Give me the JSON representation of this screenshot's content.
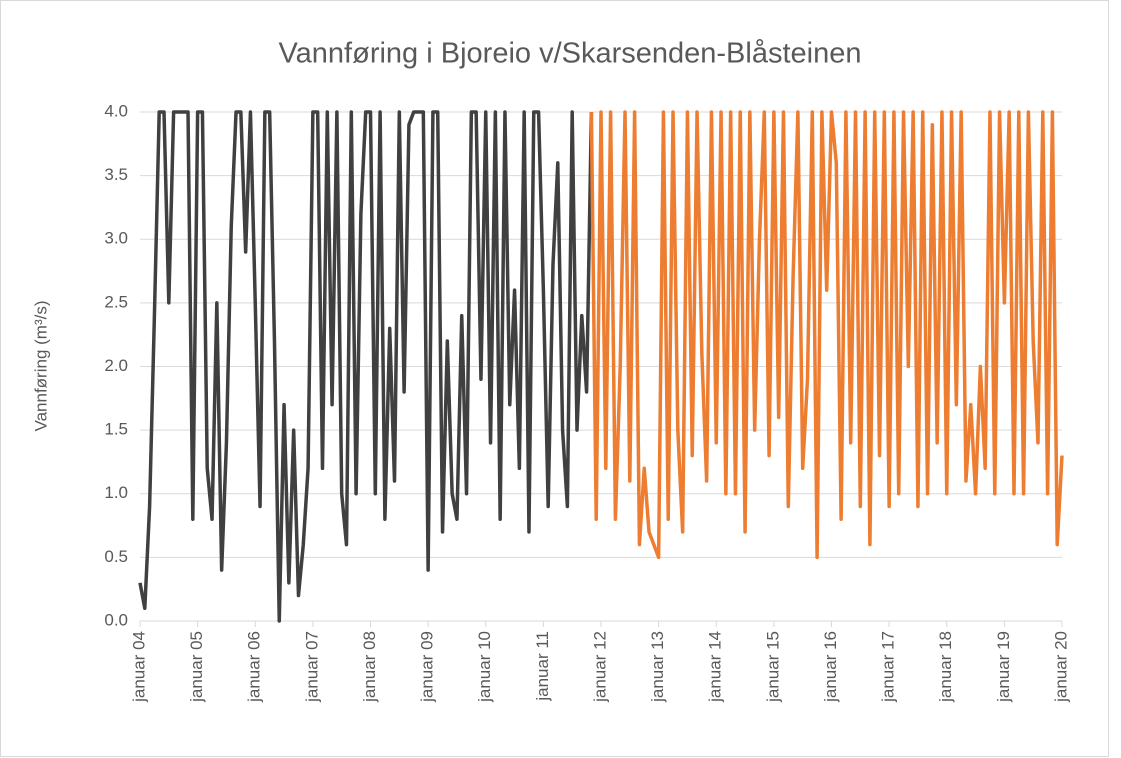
{
  "chart_data": {
    "type": "line",
    "title": "Vannføring i Bjoreio v/Skarsenden-Blåsteinen",
    "y_label": "Vannføring (m³/s)",
    "ylim": [
      0,
      4
    ],
    "yticks": [
      {
        "value": 0,
        "label": "0.0"
      },
      {
        "value": 0.5,
        "label": "0.5"
      },
      {
        "value": 1,
        "label": "1.0"
      },
      {
        "value": 1.5,
        "label": "1.5"
      },
      {
        "value": 2,
        "label": "2.0"
      },
      {
        "value": 2.5,
        "label": "2.5"
      },
      {
        "value": 3,
        "label": "3.0"
      },
      {
        "value": 3.5,
        "label": "3.5"
      },
      {
        "value": 4,
        "label": "4.0"
      }
    ],
    "xlim": [
      "2004-01",
      "2020-01"
    ],
    "xticks": [
      {
        "value": "2004-01",
        "label": "januar 04"
      },
      {
        "value": "2005-01",
        "label": "januar 05"
      },
      {
        "value": "2006-01",
        "label": "januar 06"
      },
      {
        "value": "2007-01",
        "label": "januar 07"
      },
      {
        "value": "2008-01",
        "label": "januar 08"
      },
      {
        "value": "2009-01",
        "label": "januar 09"
      },
      {
        "value": "2010-01",
        "label": "januar 10"
      },
      {
        "value": "2011-01",
        "label": "januar 11"
      },
      {
        "value": "2012-01",
        "label": "januar 12"
      },
      {
        "value": "2013-01",
        "label": "januar 13"
      },
      {
        "value": "2014-01",
        "label": "januar 14"
      },
      {
        "value": "2015-01",
        "label": "januar 15"
      },
      {
        "value": "2016-01",
        "label": "januar 16"
      },
      {
        "value": "2017-01",
        "label": "januar 17"
      },
      {
        "value": "2018-01",
        "label": "januar 18"
      },
      {
        "value": "2019-01",
        "label": "januar 19"
      },
      {
        "value": "2020-01",
        "label": "januar 20"
      }
    ],
    "grid": true,
    "x": [
      "2004-01",
      "2004-02",
      "2004-03",
      "2004-04",
      "2004-05",
      "2004-06",
      "2004-07",
      "2004-08",
      "2004-09",
      "2004-10",
      "2004-11",
      "2004-12",
      "2005-01",
      "2005-02",
      "2005-03",
      "2005-04",
      "2005-05",
      "2005-06",
      "2005-07",
      "2005-08",
      "2005-09",
      "2005-10",
      "2005-11",
      "2005-12",
      "2006-01",
      "2006-02",
      "2006-03",
      "2006-04",
      "2006-05",
      "2006-06",
      "2006-07",
      "2006-08",
      "2006-09",
      "2006-10",
      "2006-11",
      "2006-12",
      "2007-01",
      "2007-02",
      "2007-03",
      "2007-04",
      "2007-05",
      "2007-06",
      "2007-07",
      "2007-08",
      "2007-09",
      "2007-10",
      "2007-11",
      "2007-12",
      "2008-01",
      "2008-02",
      "2008-03",
      "2008-04",
      "2008-05",
      "2008-06",
      "2008-07",
      "2008-08",
      "2008-09",
      "2008-10",
      "2008-11",
      "2008-12",
      "2009-01",
      "2009-02",
      "2009-03",
      "2009-04",
      "2009-05",
      "2009-06",
      "2009-07",
      "2009-08",
      "2009-09",
      "2009-10",
      "2009-11",
      "2009-12",
      "2010-01",
      "2010-02",
      "2010-03",
      "2010-04",
      "2010-05",
      "2010-06",
      "2010-07",
      "2010-08",
      "2010-09",
      "2010-10",
      "2010-11",
      "2010-12",
      "2011-01",
      "2011-02",
      "2011-03",
      "2011-04",
      "2011-05",
      "2011-06",
      "2011-07",
      "2011-08",
      "2011-09",
      "2011-10",
      "2011-11",
      "2011-12",
      "2012-01",
      "2012-02",
      "2012-03",
      "2012-04",
      "2012-05",
      "2012-06",
      "2012-07",
      "2012-08",
      "2012-09",
      "2012-10",
      "2012-11",
      "2012-12",
      "2013-01",
      "2013-02",
      "2013-03",
      "2013-04",
      "2013-05",
      "2013-06",
      "2013-07",
      "2013-08",
      "2013-09",
      "2013-10",
      "2013-11",
      "2013-12",
      "2014-01",
      "2014-02",
      "2014-03",
      "2014-04",
      "2014-05",
      "2014-06",
      "2014-07",
      "2014-08",
      "2014-09",
      "2014-10",
      "2014-11",
      "2014-12",
      "2015-01",
      "2015-02",
      "2015-03",
      "2015-04",
      "2015-05",
      "2015-06",
      "2015-07",
      "2015-08",
      "2015-09",
      "2015-10",
      "2015-11",
      "2015-12",
      "2016-01",
      "2016-02",
      "2016-03",
      "2016-04",
      "2016-05",
      "2016-06",
      "2016-07",
      "2016-08",
      "2016-09",
      "2016-10",
      "2016-11",
      "2016-12",
      "2017-01",
      "2017-02",
      "2017-03",
      "2017-04",
      "2017-05",
      "2017-06",
      "2017-07",
      "2017-08",
      "2017-09",
      "2017-10",
      "2017-11",
      "2017-12",
      "2018-01",
      "2018-02",
      "2018-03",
      "2018-04",
      "2018-05",
      "2018-06",
      "2018-07",
      "2018-08",
      "2018-09",
      "2018-10",
      "2018-11",
      "2018-12",
      "2019-01",
      "2019-02",
      "2019-03",
      "2019-04",
      "2019-05",
      "2019-06",
      "2019-07",
      "2019-08",
      "2019-09",
      "2019-10",
      "2019-11",
      "2019-12",
      "2020-01"
    ],
    "series": [
      {
        "color": "#404040",
        "values": [
          0.3,
          0.1,
          0.9,
          2.4,
          4,
          4,
          2.5,
          4,
          4,
          4,
          4,
          0.8,
          4,
          4,
          1.2,
          0.8,
          2.5,
          0.4,
          1.4,
          3.1,
          4,
          4,
          2.9,
          4,
          2.5,
          0.9,
          4,
          4,
          2.2,
          0.0,
          1.7,
          0.3,
          1.5,
          0.2,
          0.6,
          1.2,
          4,
          4,
          1.2,
          4,
          1.7,
          4,
          1.0,
          0.6,
          4,
          1.0,
          3.2,
          4,
          4,
          1.0,
          4,
          0.8,
          2.3,
          1.1,
          4,
          1.8,
          3.9,
          4,
          4,
          4,
          0.4,
          4,
          4,
          0.7,
          2.2,
          1.0,
          0.8,
          2.4,
          1.0,
          4,
          4,
          1.9,
          4,
          1.4,
          4,
          0.8,
          4,
          1.7,
          2.6,
          1.2,
          4,
          0.7,
          4,
          4,
          2.6,
          0.9,
          2.8,
          3.6,
          1.5,
          0.9,
          4,
          1.5,
          2.4,
          1.8,
          4,
          null,
          null,
          null,
          null,
          null,
          null,
          null,
          null,
          null,
          null,
          null,
          null,
          null,
          null,
          null,
          null,
          null,
          null,
          null,
          null,
          null,
          null,
          null,
          null,
          null,
          null,
          null,
          null,
          null,
          null,
          null,
          null,
          null,
          null,
          null,
          null,
          null,
          null,
          null,
          null,
          null,
          null,
          null,
          null,
          null,
          null,
          null,
          null,
          null,
          null,
          null,
          null,
          null,
          null,
          null,
          null,
          null,
          null,
          null,
          null,
          null,
          null,
          null,
          null,
          null,
          null,
          null,
          null,
          null,
          null,
          null,
          null,
          null,
          null,
          null,
          null,
          null,
          null,
          null,
          null,
          null,
          null,
          null,
          null,
          null,
          null,
          null,
          null,
          null,
          null,
          null,
          null,
          null,
          null,
          null,
          null,
          null,
          null
        ]
      },
      {
        "color": "#ed7d31",
        "values": [
          null,
          null,
          null,
          null,
          null,
          null,
          null,
          null,
          null,
          null,
          null,
          null,
          null,
          null,
          null,
          null,
          null,
          null,
          null,
          null,
          null,
          null,
          null,
          null,
          null,
          null,
          null,
          null,
          null,
          null,
          null,
          null,
          null,
          null,
          null,
          null,
          null,
          null,
          null,
          null,
          null,
          null,
          null,
          null,
          null,
          null,
          null,
          null,
          null,
          null,
          null,
          null,
          null,
          null,
          null,
          null,
          null,
          null,
          null,
          null,
          null,
          null,
          null,
          null,
          null,
          null,
          null,
          null,
          null,
          null,
          null,
          null,
          null,
          null,
          null,
          null,
          null,
          null,
          null,
          null,
          null,
          null,
          null,
          null,
          null,
          null,
          null,
          null,
          null,
          null,
          null,
          null,
          null,
          null,
          4,
          0.8,
          4,
          1.2,
          4,
          0.8,
          2.0,
          4,
          1.1,
          4,
          0.6,
          1.2,
          0.7,
          0.6,
          0.5,
          4,
          0.8,
          4,
          1.5,
          0.7,
          4,
          1.3,
          4,
          2.1,
          1.1,
          4,
          1.4,
          4,
          1.0,
          4,
          1.0,
          4,
          0.7,
          4,
          1.5,
          3.0,
          4,
          1.3,
          4,
          1.6,
          4,
          0.9,
          2.7,
          4,
          1.2,
          1.9,
          4,
          0.5,
          4,
          2.6,
          4,
          3.6,
          0.8,
          4,
          1.4,
          4,
          0.9,
          4,
          0.6,
          4,
          1.3,
          4,
          0.9,
          4,
          1.0,
          4,
          2.0,
          4,
          0.9,
          4,
          1.0,
          3.9,
          1.4,
          4,
          1.0,
          4,
          1.7,
          4,
          1.1,
          1.7,
          1.0,
          2.0,
          1.2,
          4,
          1.0,
          4,
          2.5,
          4,
          1.0,
          4,
          1.0,
          4,
          2.2,
          1.4,
          4,
          1.0,
          4,
          0.6,
          1.3
        ]
      }
    ]
  }
}
